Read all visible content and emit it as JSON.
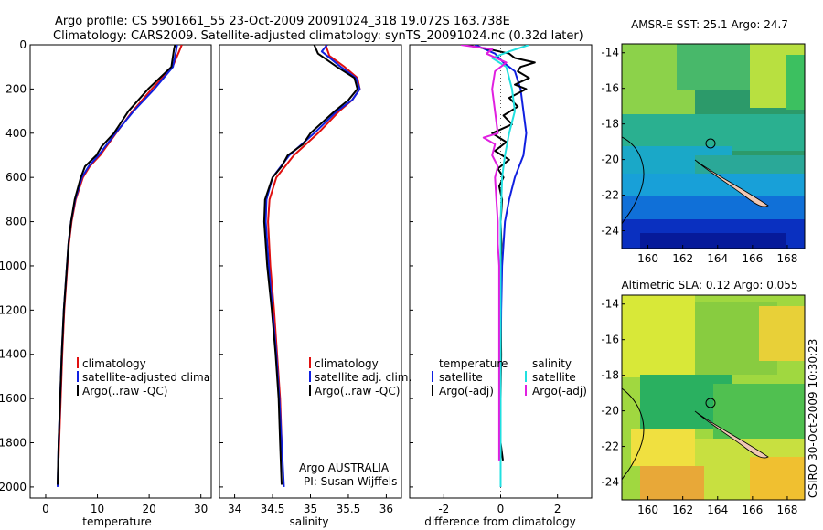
{
  "header": {
    "line1": "Argo profile: CS 5901661_55 23-Oct-2009 20091024_318 19.072S 163.738E",
    "line2": "Climatology: CARS2009. Satellite-adjusted climatology: synTS_20091024.nc (0.32d later)"
  },
  "footer_stamp": "CSIRO 30-Oct-2009 10:30:23",
  "colors": {
    "climatology": "#e01010",
    "satellite": "#1020e0",
    "argo": "#000000",
    "sal_satellite": "#20e0e0",
    "sal_argo": "#e020e0",
    "land": "#f0c8b4"
  },
  "chart_data": [
    {
      "id": "temperature",
      "type": "line",
      "xlabel": "temperature",
      "ylabel": "",
      "xlim": [
        -3,
        32
      ],
      "ylim": [
        2050,
        0
      ],
      "xticks": [
        0,
        10,
        20,
        30
      ],
      "yticks": [
        0,
        200,
        400,
        600,
        800,
        1000,
        1200,
        1400,
        1600,
        1800,
        2000
      ],
      "legend": [
        "climatology",
        "satellite-adjusted climatology",
        "Argo(..raw -QC)"
      ],
      "series": [
        {
          "name": "climatology",
          "color": "#e01010",
          "depth": [
            0,
            30,
            100,
            200,
            300,
            400,
            500,
            550,
            600,
            700,
            800,
            900,
            1000,
            1200,
            1400,
            1600,
            1800,
            1870
          ],
          "values": [
            26.3,
            25.8,
            24.5,
            20.5,
            16.8,
            13.6,
            10.5,
            8.5,
            7.2,
            5.8,
            5.0,
            4.5,
            4.2,
            3.6,
            3.2,
            2.9,
            2.6,
            2.5
          ]
        },
        {
          "name": "satellite-adjusted climatology",
          "color": "#1020e0",
          "depth": [
            0,
            30,
            100,
            200,
            300,
            400,
            500,
            550,
            600,
            700,
            800,
            900,
            1000,
            1200,
            1400,
            1600,
            1800,
            2000
          ],
          "values": [
            25.4,
            25.2,
            24.6,
            21.0,
            17.0,
            13.5,
            10.2,
            8.3,
            7.0,
            5.7,
            4.9,
            4.4,
            4.1,
            3.5,
            3.1,
            2.8,
            2.5,
            2.3
          ]
        },
        {
          "name": "Argo(..raw -QC)",
          "color": "#000000",
          "depth": [
            0,
            20,
            100,
            200,
            300,
            400,
            460,
            500,
            550,
            600,
            700,
            800,
            900,
            1000,
            1200,
            1400,
            1600,
            1800,
            1990
          ],
          "values": [
            25.0,
            24.8,
            24.3,
            19.8,
            16.0,
            13.2,
            10.8,
            9.8,
            7.6,
            6.8,
            5.6,
            4.9,
            4.4,
            4.1,
            3.5,
            3.1,
            2.8,
            2.5,
            2.3
          ]
        }
      ]
    },
    {
      "id": "salinity",
      "type": "line",
      "xlabel": "salinity",
      "ylabel": "",
      "xlim": [
        33.8,
        36.2
      ],
      "ylim": [
        2050,
        0
      ],
      "xticks": [
        34,
        34.5,
        35,
        35.5,
        36
      ],
      "legend": [
        "climatology",
        "satellite adj. clim.",
        "Argo(..raw -QC)"
      ],
      "annotation": [
        "Argo AUSTRALIA",
        "PI: Susan Wijffels"
      ],
      "series": [
        {
          "name": "climatology",
          "color": "#e01010",
          "depth": [
            0,
            50,
            100,
            150,
            200,
            250,
            300,
            400,
            500,
            600,
            700,
            800,
            1000,
            1200,
            1400,
            1600,
            1800,
            1870
          ],
          "values": [
            35.2,
            35.25,
            35.45,
            35.62,
            35.65,
            35.55,
            35.38,
            35.1,
            34.78,
            34.55,
            34.46,
            34.44,
            34.47,
            34.52,
            34.56,
            34.6,
            34.62,
            34.63
          ]
        },
        {
          "name": "satellite adj. clim.",
          "color": "#1020e0",
          "depth": [
            0,
            30,
            100,
            150,
            200,
            250,
            300,
            400,
            500,
            600,
            700,
            800,
            1000,
            1200,
            1400,
            1600,
            1800,
            2000
          ],
          "values": [
            35.22,
            35.15,
            35.4,
            35.6,
            35.65,
            35.55,
            35.35,
            35.05,
            34.72,
            34.5,
            34.42,
            34.41,
            34.45,
            34.5,
            34.55,
            34.59,
            34.62,
            34.65
          ]
        },
        {
          "name": "Argo(..raw -QC)",
          "color": "#000000",
          "depth": [
            0,
            40,
            100,
            150,
            200,
            250,
            300,
            400,
            450,
            500,
            550,
            600,
            700,
            800,
            1000,
            1200,
            1400,
            1600,
            1800,
            1990
          ],
          "values": [
            35.05,
            35.1,
            35.35,
            35.58,
            35.62,
            35.5,
            35.32,
            35.0,
            34.9,
            34.7,
            34.62,
            34.5,
            34.4,
            34.39,
            34.43,
            34.49,
            34.54,
            34.58,
            34.6,
            34.62
          ]
        }
      ]
    },
    {
      "id": "difference",
      "type": "line",
      "xlabel": "difference from climatology",
      "ylabel": "",
      "xlim": [
        -3.2,
        3.2
      ],
      "ylim": [
        2050,
        0
      ],
      "xticks": [
        -2,
        0,
        2
      ],
      "legend_temperature_title": "temperature",
      "legend_salinity_title": "salinity",
      "legend_temperature": [
        "satellite",
        "Argo(-adj)"
      ],
      "legend_salinity": [
        "satellite",
        "Argo(-adj)"
      ],
      "series": [
        {
          "name": "temperature satellite",
          "color": "#1020e0",
          "depth": [
            0,
            40,
            80,
            120,
            200,
            300,
            400,
            500,
            600,
            700,
            800,
            1000,
            1200,
            1500,
            2000
          ],
          "values": [
            -0.9,
            -0.2,
            0.1,
            0.5,
            0.7,
            0.8,
            0.9,
            0.8,
            0.5,
            0.3,
            0.15,
            0.05,
            0.02,
            0.0,
            0.0
          ]
        },
        {
          "name": "temperature Argo(-adj)",
          "color": "#000000",
          "depth": [
            0,
            20,
            40,
            60,
            80,
            100,
            120,
            150,
            180,
            200,
            240,
            280,
            320,
            360,
            400,
            440,
            480,
            520,
            560,
            600,
            640,
            700,
            800,
            900,
            1000,
            1200,
            1400,
            1600,
            1800,
            1880
          ],
          "values": [
            -1.3,
            -0.4,
            0.3,
            0.5,
            1.2,
            0.7,
            0.6,
            1.0,
            0.5,
            0.9,
            0.3,
            0.6,
            0.1,
            0.4,
            -0.3,
            0.2,
            -0.2,
            0.3,
            -0.1,
            0.1,
            -0.05,
            0.05,
            0.0,
            0.03,
            0.0,
            0.0,
            0.02,
            0.0,
            0.0,
            0.08
          ]
        },
        {
          "name": "salinity satellite",
          "color": "#20e0e0",
          "depth": [
            0,
            30,
            60,
            100,
            200,
            300,
            400,
            500,
            600,
            800,
            1000,
            1500,
            2000
          ],
          "values": [
            1.0,
            0.3,
            -0.3,
            0.2,
            0.4,
            0.5,
            0.3,
            0.15,
            0.05,
            0.0,
            0.0,
            0.0,
            0.0
          ]
        },
        {
          "name": "salinity Argo(-adj)",
          "color": "#e020e0",
          "depth": [
            0,
            20,
            40,
            80,
            120,
            200,
            300,
            400,
            420,
            450,
            500,
            550,
            600,
            700,
            800,
            900,
            1000,
            1200,
            1400,
            1600,
            1800,
            1880
          ],
          "values": [
            -1.4,
            -0.3,
            -0.5,
            0.2,
            -0.2,
            -0.3,
            -0.2,
            -0.1,
            -0.6,
            -0.2,
            -0.3,
            -0.1,
            -0.2,
            -0.15,
            -0.1,
            -0.1,
            -0.05,
            -0.05,
            -0.05,
            -0.05,
            -0.05,
            -0.05
          ]
        }
      ]
    },
    {
      "id": "sst_map",
      "type": "heatmap",
      "title": "AMSR-E SST: 25.1 Argo: 24.7",
      "xticks": [
        160,
        162,
        164,
        166,
        168
      ],
      "yticks": [
        -14,
        -16,
        -18,
        -20,
        -22,
        -24
      ],
      "xlim": [
        158.5,
        169
      ],
      "ylim": [
        -25,
        -13.5
      ],
      "marker": {
        "lon": 163.738,
        "lat": -19.072
      }
    },
    {
      "id": "sla_map",
      "type": "heatmap",
      "title": "Altimetric SLA: 0.12 Argo: 0.055",
      "xticks": [
        160,
        162,
        164,
        166,
        168
      ],
      "yticks": [
        -14,
        -16,
        -18,
        -20,
        -22,
        -24
      ],
      "xlim": [
        158.5,
        169
      ],
      "ylim": [
        -25,
        -13.5
      ],
      "marker": {
        "lon": 163.738,
        "lat": -19.072
      }
    }
  ]
}
